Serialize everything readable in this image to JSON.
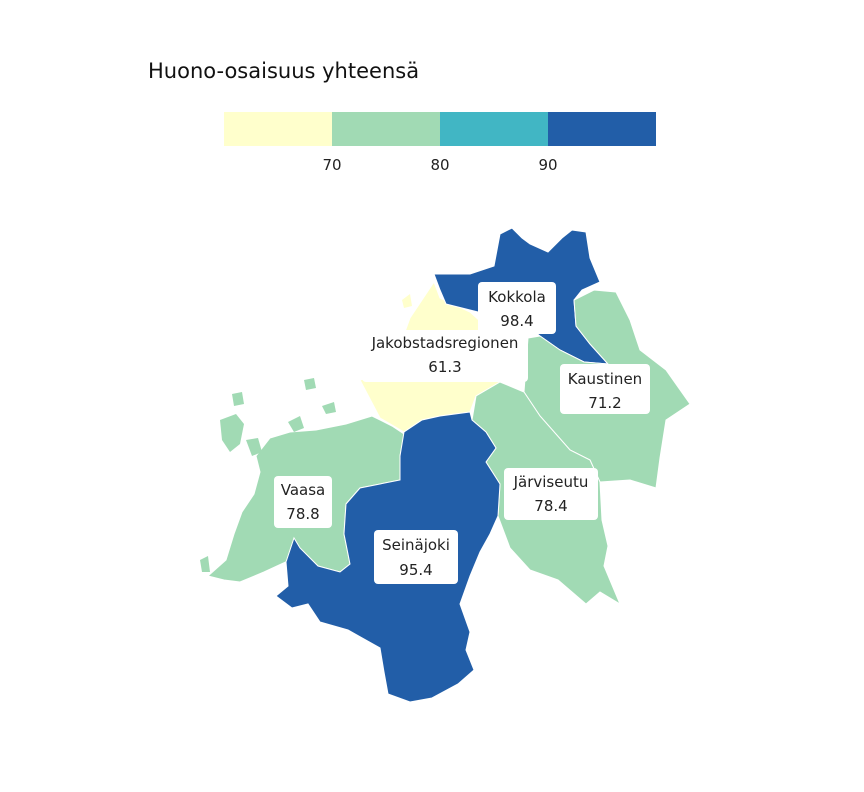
{
  "title": "Huono-osaisuus yhteensä",
  "legend": {
    "colors": [
      "#ffffcc",
      "#a1dab4",
      "#41b6c4",
      "#225ea8"
    ],
    "ticks": [
      "70",
      "80",
      "90"
    ]
  },
  "regions": [
    {
      "id": "jakobstadsregionen",
      "name": "Jakobstadsregionen",
      "value": "61.3",
      "color": "#ffffcc"
    },
    {
      "id": "kokkola",
      "name": "Kokkola",
      "value": "98.4",
      "color": "#225ea8"
    },
    {
      "id": "kaustinen",
      "name": "Kaustinen",
      "value": "71.2",
      "color": "#a1dab4"
    },
    {
      "id": "jarviseutu",
      "name": "Järviseutu",
      "value": "78.4",
      "color": "#a1dab4"
    },
    {
      "id": "vaasa",
      "name": "Vaasa",
      "value": "78.8",
      "color": "#a1dab4"
    },
    {
      "id": "seinajoki",
      "name": "Seinäjoki",
      "value": "95.4",
      "color": "#225ea8"
    }
  ]
}
